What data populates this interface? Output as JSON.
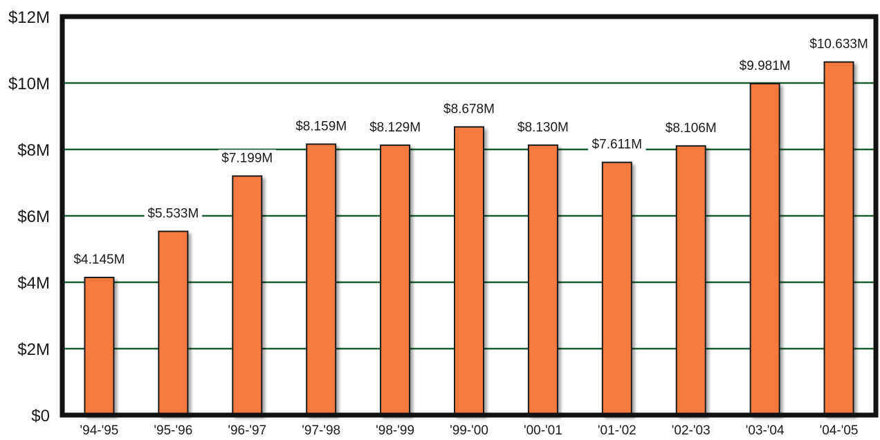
{
  "chart_data": {
    "type": "bar",
    "categories": [
      "'94-'95",
      "'95-'96",
      "'96-'97",
      "'97-'98",
      "'98-'99",
      "'99-'00",
      "'00-'01",
      "'01-'02",
      "'02-'03",
      "'03-'04",
      "'04-'05"
    ],
    "values": [
      4.145,
      5.533,
      7.199,
      8.159,
      8.129,
      8.678,
      8.13,
      7.611,
      8.106,
      9.981,
      10.633
    ],
    "value_labels": [
      "$4.145M",
      "$5.533M",
      "$7.199M",
      "$8.159M",
      "$8.129M",
      "$8.678M",
      "$8.130M",
      "$7.611M",
      "$8.106M",
      "$9.981M",
      "$10.633M"
    ],
    "ylim": [
      0,
      12
    ],
    "yticks": [
      0,
      2,
      4,
      6,
      8,
      10,
      12
    ],
    "ytick_labels": [
      "$0",
      "$2M",
      "$4M",
      "$6M",
      "$8M",
      "$10M",
      "$12M"
    ],
    "grid": true,
    "colors": {
      "bar": "#F47A3F",
      "bar_outline": "#1a1a1a",
      "gridline": "#1E5A32",
      "frame": "#111111"
    }
  }
}
